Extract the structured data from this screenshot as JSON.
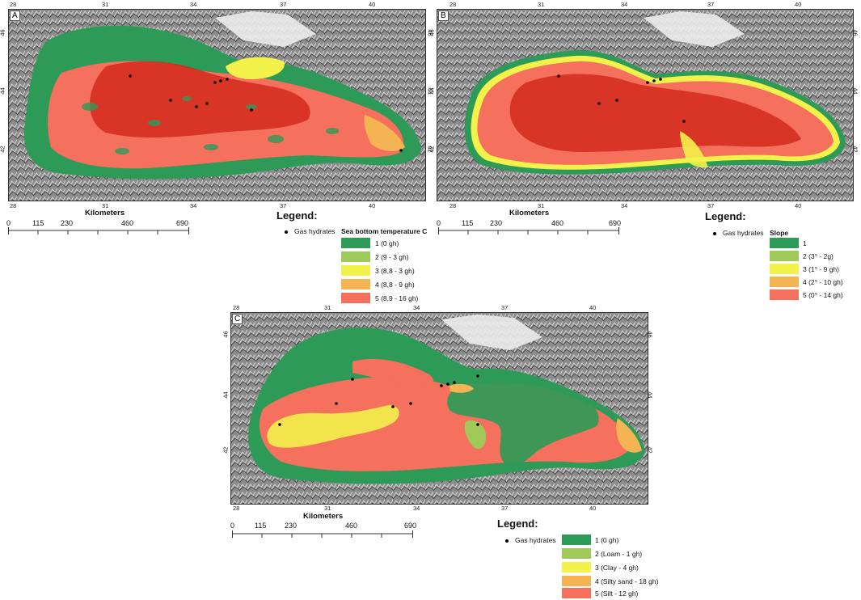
{
  "colors": {
    "c1": "#2e9a57",
    "c2": "#9fca5a",
    "c3": "#f2f24a",
    "c4": "#f5b454",
    "c5": "#f5705d",
    "deep_red": "#d42a1c",
    "terrain": "#8c8c8c"
  },
  "panels": [
    {
      "label": "A",
      "lon_ticks": [
        "28",
        "31",
        "34",
        "37",
        "40"
      ],
      "lat_ticks": [
        "46",
        "44",
        "42"
      ],
      "scale": {
        "title": "Kilometers",
        "labels": [
          "0",
          "115",
          "230",
          "460",
          "690"
        ]
      },
      "legend": {
        "heading": "Legend:",
        "gas_hydrates": "Gas hydrates",
        "title": "Sea bottom temperature C",
        "classes": [
          {
            "label": "1 (0 gh)",
            "color_key": "c1"
          },
          {
            "label": "2 (9 - 3 gh)",
            "color_key": "c2"
          },
          {
            "label": "3 (8,8 - 3 gh)",
            "color_key": "c3"
          },
          {
            "label": "4 (8,8 - 9 gh)",
            "color_key": "c4"
          },
          {
            "label": "5 (8,9 - 16 gh)",
            "color_key": "c5"
          }
        ]
      }
    },
    {
      "label": "B",
      "lon_ticks": [
        "28",
        "31",
        "34",
        "37",
        "40"
      ],
      "lat_ticks": [
        "46",
        "44",
        "42"
      ],
      "scale": {
        "title": "Kilometers",
        "labels": [
          "0",
          "115",
          "230",
          "460",
          "690"
        ]
      },
      "legend": {
        "heading": "Legend:",
        "gas_hydrates": "Gas hydrates",
        "title": "Slope",
        "classes": [
          {
            "label": "1",
            "color_key": "c1"
          },
          {
            "label": "2 (3° - 2g)",
            "color_key": "c2"
          },
          {
            "label": "3 (1° - 9 gh)",
            "color_key": "c3"
          },
          {
            "label": "4 (2° - 10 gh)",
            "color_key": "c4"
          },
          {
            "label": "5 (0° - 14 gh)",
            "color_key": "c5"
          }
        ]
      }
    },
    {
      "label": "C",
      "lon_ticks": [
        "28",
        "31",
        "34",
        "37",
        "40"
      ],
      "lat_ticks": [
        "46",
        "44",
        "42"
      ],
      "scale": {
        "title": "Kilometers",
        "labels": [
          "0",
          "115",
          "230",
          "460",
          "690"
        ]
      },
      "legend": {
        "heading": "Legend:",
        "gas_hydrates": "Gas hydrates",
        "title": "",
        "classes": [
          {
            "label": "1 (0 gh)",
            "color_key": "c1"
          },
          {
            "label": "2 (Loam - 1 gh)",
            "color_key": "c2"
          },
          {
            "label": "3 (Clay - 4 gh)",
            "color_key": "c3"
          },
          {
            "label": "4 (Silty sand - 18 gh)",
            "color_key": "c4"
          },
          {
            "label": "5 (Silt - 12 gh)",
            "color_key": "c5"
          }
        ]
      }
    }
  ]
}
